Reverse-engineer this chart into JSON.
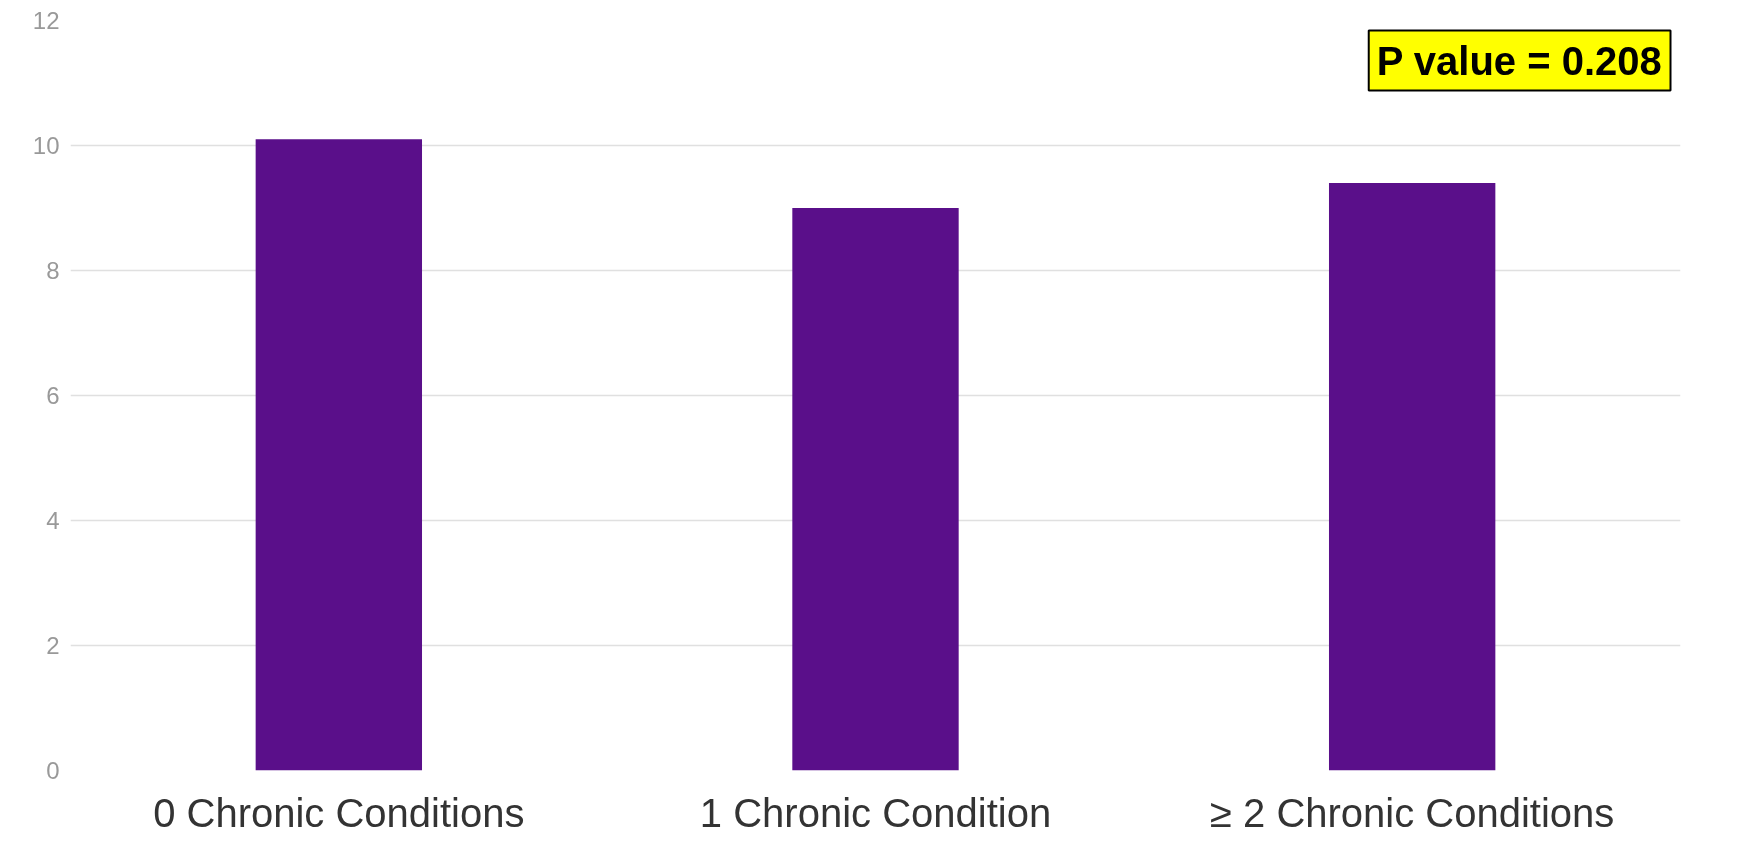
{
  "chart_data": {
    "type": "bar",
    "categories": [
      "0 Chronic Conditions",
      "1 Chronic Condition",
      "≥ 2 Chronic Conditions"
    ],
    "values": [
      10.1,
      9.0,
      9.4
    ],
    "color": "#5a0f8a",
    "ylim": [
      0,
      12
    ],
    "yticks": [
      0,
      2,
      4,
      6,
      8,
      10,
      12
    ],
    "grid": "y",
    "annotations": [
      "P value = 0.208"
    ]
  }
}
